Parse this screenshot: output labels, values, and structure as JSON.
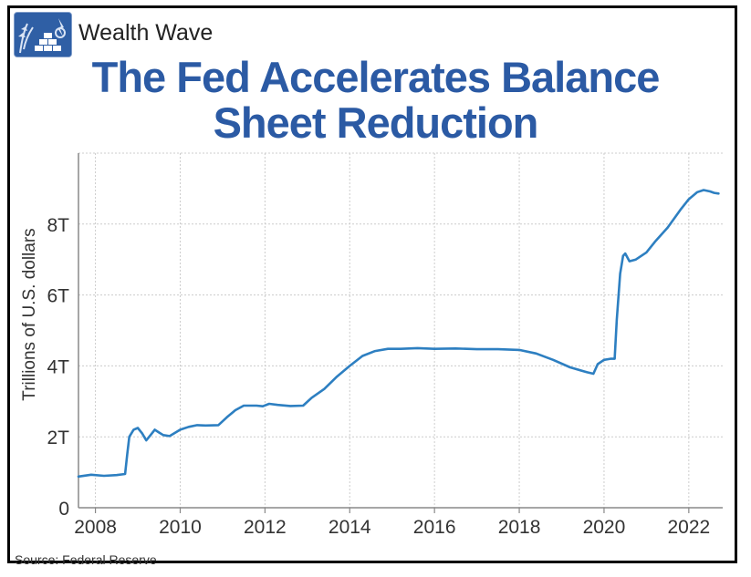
{
  "header": {
    "brand": "Wealth Wave",
    "logo_icon": "wealth-wave-logo-icon"
  },
  "footer": {
    "source": "Source: Federal Reserve"
  },
  "colors": {
    "title": "#2b5aa4",
    "line": "#2d7fc1",
    "grid": "#cccccc",
    "axis": "#888888"
  },
  "chart_data": {
    "type": "line",
    "title": "The Fed Accelerates Balance Sheet Reduction",
    "xlabel": "",
    "ylabel": "Trillions of U.S. dollars",
    "xlim": [
      2007.6,
      2022.8
    ],
    "ylim": [
      0,
      10
    ],
    "grid": true,
    "legend": "none",
    "x_ticks": [
      2008,
      2010,
      2012,
      2014,
      2016,
      2018,
      2020,
      2022
    ],
    "x_tick_labels": [
      "2008",
      "2010",
      "2012",
      "2014",
      "2016",
      "2018",
      "2020",
      "2022"
    ],
    "y_ticks": [
      0,
      2,
      4,
      6,
      8
    ],
    "y_tick_labels": [
      "0",
      "2T",
      "4T",
      "6T",
      "8T"
    ],
    "series": [
      {
        "x": [
          2007.6,
          2007.9,
          2008.2,
          2008.5,
          2008.7,
          2008.75,
          2008.8,
          2008.9,
          2009.0,
          2009.1,
          2009.2,
          2009.3,
          2009.4,
          2009.5,
          2009.6,
          2009.75,
          2010.0,
          2010.2,
          2010.4,
          2010.6,
          2010.9,
          2011.1,
          2011.3,
          2011.5,
          2011.8,
          2011.95,
          2012.1,
          2012.3,
          2012.6,
          2012.9,
          2013.1,
          2013.4,
          2013.7,
          2014.0,
          2014.3,
          2014.6,
          2014.9,
          2015.2,
          2015.6,
          2016.0,
          2016.5,
          2017.0,
          2017.5,
          2018.0,
          2018.4,
          2018.8,
          2019.2,
          2019.6,
          2019.75,
          2019.85,
          2020.0,
          2020.15,
          2020.25,
          2020.3,
          2020.38,
          2020.45,
          2020.5,
          2020.6,
          2020.75,
          2021.0,
          2021.2,
          2021.5,
          2021.8,
          2022.0,
          2022.2,
          2022.35,
          2022.5,
          2022.6,
          2022.7
        ],
        "y": [
          0.88,
          0.93,
          0.9,
          0.92,
          0.95,
          1.5,
          2.0,
          2.2,
          2.25,
          2.1,
          1.9,
          2.05,
          2.2,
          2.12,
          2.05,
          2.02,
          2.2,
          2.28,
          2.33,
          2.32,
          2.33,
          2.55,
          2.75,
          2.88,
          2.88,
          2.86,
          2.93,
          2.9,
          2.87,
          2.88,
          3.1,
          3.35,
          3.7,
          4.0,
          4.28,
          4.42,
          4.48,
          4.48,
          4.5,
          4.48,
          4.49,
          4.47,
          4.47,
          4.45,
          4.35,
          4.17,
          3.96,
          3.82,
          3.78,
          4.05,
          4.17,
          4.2,
          4.2,
          5.3,
          6.6,
          7.1,
          7.17,
          6.95,
          7.0,
          7.2,
          7.5,
          7.9,
          8.4,
          8.7,
          8.9,
          8.96,
          8.92,
          8.88,
          8.86
        ]
      }
    ]
  }
}
